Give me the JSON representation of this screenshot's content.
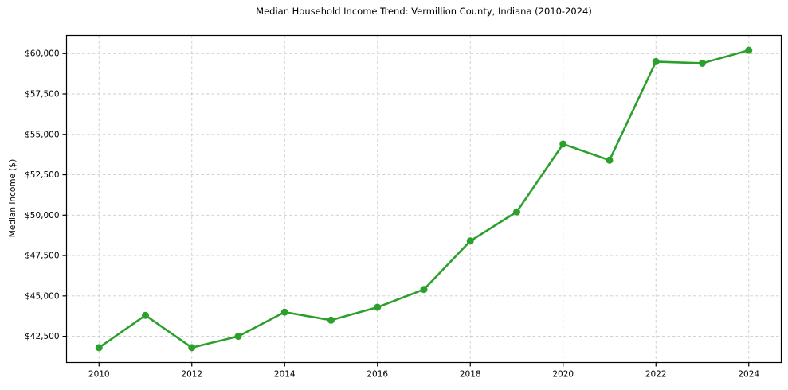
{
  "chart_data": {
    "type": "line",
    "title": "Median Household Income Trend: Vermillion County, Indiana (2010-2024)",
    "xlabel": "",
    "ylabel": "Median Income ($)",
    "series_name": "Median Household Income",
    "x": [
      2010,
      2011,
      2012,
      2013,
      2014,
      2015,
      2016,
      2017,
      2018,
      2019,
      2020,
      2021,
      2022,
      2023,
      2024
    ],
    "values": [
      41800,
      43800,
      41800,
      42500,
      44000,
      43500,
      44300,
      45400,
      48400,
      50200,
      54400,
      53400,
      59500,
      59400,
      60200
    ],
    "xlim": [
      2009.3,
      2024.7
    ],
    "ylim": [
      40880,
      61120
    ],
    "xticks": [
      2010,
      2012,
      2014,
      2016,
      2018,
      2020,
      2022,
      2024
    ],
    "xtick_labels": [
      "2010",
      "2012",
      "2014",
      "2016",
      "2018",
      "2020",
      "2022",
      "2024"
    ],
    "yticks": [
      42500,
      45000,
      47500,
      50000,
      52500,
      55000,
      57500,
      60000
    ],
    "ytick_labels": [
      "$42,500",
      "$45,000",
      "$47,500",
      "$50,000",
      "$52,500",
      "$55,000",
      "$57,500",
      "$60,000"
    ],
    "grid": true,
    "grid_style": "dashed",
    "legend": "none",
    "marker": "circle",
    "colors": {
      "line": "#2ca02c",
      "marker": "#2ca02c",
      "grid": "#cccccc",
      "spine": "#000000",
      "background": "#ffffff",
      "text": "#000000"
    }
  }
}
